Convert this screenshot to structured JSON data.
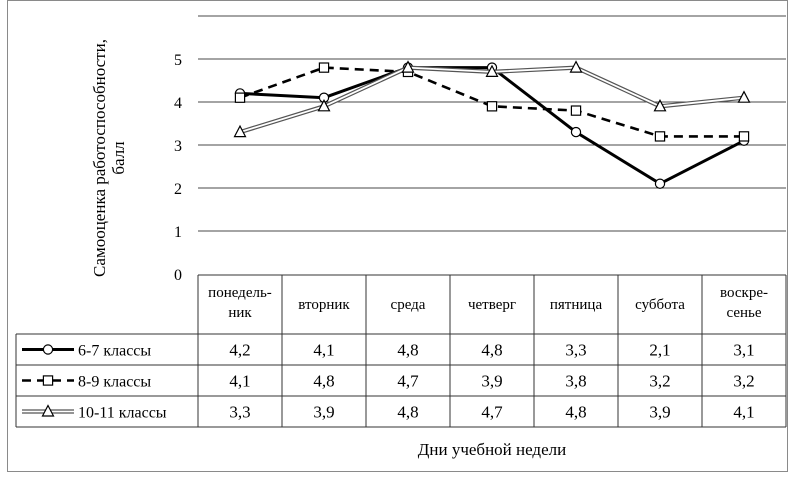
{
  "chart_data": {
    "type": "line",
    "title": "",
    "ylabel_line1": "Самооценка работоспособности,",
    "ylabel_line2": "балл",
    "xlabel": "Дни учебной недели",
    "ylim": [
      0,
      5
    ],
    "yticks": [
      "0",
      "1",
      "2",
      "3",
      "4",
      "5"
    ],
    "grid": true,
    "legend": "data-table",
    "categories": [
      [
        "понедель-",
        "ник"
      ],
      [
        "вторник"
      ],
      [
        "среда"
      ],
      [
        "четверг"
      ],
      [
        "пятница"
      ],
      [
        "суббота"
      ],
      [
        "воскре-",
        "сенье"
      ]
    ],
    "series": [
      {
        "name": "6-7 классы",
        "style": "solid-bold",
        "marker": "circle",
        "values": [
          4.2,
          4.1,
          4.8,
          4.8,
          3.3,
          2.1,
          3.1
        ],
        "labels": [
          "4,2",
          "4,1",
          "4,8",
          "4,8",
          "3,3",
          "2,1",
          "3,1"
        ]
      },
      {
        "name": "8-9 классы",
        "style": "dashed",
        "marker": "square",
        "values": [
          4.1,
          4.8,
          4.7,
          3.9,
          3.8,
          3.2,
          3.2
        ],
        "labels": [
          "4,1",
          "4,8",
          "4,7",
          "3,9",
          "3,8",
          "3,2",
          "3,2"
        ]
      },
      {
        "name": "10-11 классы",
        "style": "double",
        "marker": "triangle",
        "values": [
          3.3,
          3.9,
          4.8,
          4.7,
          4.8,
          3.9,
          4.1
        ],
        "labels": [
          "3,3",
          "3,9",
          "4,8",
          "4,7",
          "4,8",
          "3,9",
          "4,1"
        ]
      }
    ]
  }
}
